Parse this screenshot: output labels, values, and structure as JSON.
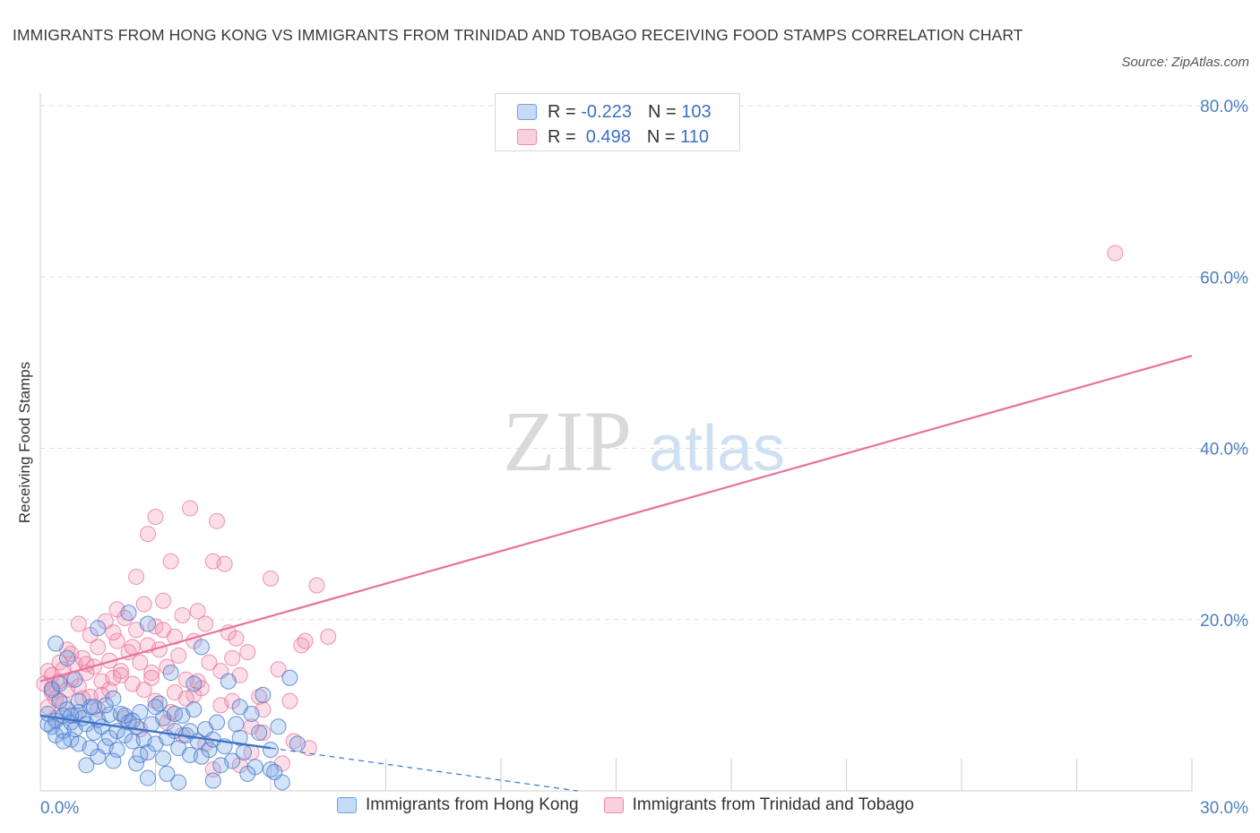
{
  "title": "IMMIGRANTS FROM HONG KONG VS IMMIGRANTS FROM TRINIDAD AND TOBAGO RECEIVING FOOD STAMPS CORRELATION CHART",
  "source": "Source: ZipAtlas.com",
  "watermark": {
    "zip": "ZIP",
    "atlas": "atlas"
  },
  "legend": {
    "rows": [
      {
        "r_label": "R = ",
        "r_value": "-0.223",
        "n_label": "N = ",
        "n_value": "103"
      },
      {
        "r_label": "R = ",
        "r_value": " 0.498",
        "n_label": "N = ",
        "n_value": "110"
      }
    ]
  },
  "colors": {
    "hong_kong": "#6fa3e6",
    "trinidad": "#f08aaa",
    "hk_line": "#3b73c8",
    "tt_line": "#e8729a",
    "tick": "#4a7fc1"
  },
  "chart_data": {
    "type": "scatter",
    "title": "IMMIGRANTS FROM HONG KONG VS IMMIGRANTS FROM TRINIDAD AND TOBAGO RECEIVING FOOD STAMPS CORRELATION CHART",
    "xlabel": "",
    "ylabel": "Receiving Food Stamps",
    "xlim": [
      0,
      30
    ],
    "ylim": [
      0,
      80
    ],
    "x_tick_labels": [
      "0.0%",
      "30.0%"
    ],
    "y_ticks": [
      20,
      40,
      60,
      80
    ],
    "y_tick_labels": [
      "20.0%",
      "40.0%",
      "60.0%",
      "80.0%"
    ],
    "grid": true,
    "legend_position": "top-center",
    "series": [
      {
        "name": "Immigrants from Hong Kong",
        "color": "#6fa3e6",
        "R": -0.223,
        "N": 103,
        "trend": {
          "x": [
            0,
            6.0
          ],
          "y": [
            8.8,
            5.0
          ],
          "dashed_to": [
            14.0,
            0.0
          ]
        },
        "points": [
          [
            0.2,
            9.0
          ],
          [
            0.3,
            7.5
          ],
          [
            0.4,
            8.2
          ],
          [
            0.4,
            6.5
          ],
          [
            0.5,
            10.5
          ],
          [
            0.6,
            8.8
          ],
          [
            0.6,
            7.0
          ],
          [
            0.7,
            9.5
          ],
          [
            0.8,
            6.0
          ],
          [
            0.8,
            8.0
          ],
          [
            0.9,
            7.2
          ],
          [
            1.0,
            9.2
          ],
          [
            1.0,
            5.5
          ],
          [
            1.1,
            8.5
          ],
          [
            1.2,
            7.8
          ],
          [
            1.2,
            3.0
          ],
          [
            1.3,
            9.8
          ],
          [
            1.4,
            6.8
          ],
          [
            1.5,
            8.3
          ],
          [
            1.5,
            4.0
          ],
          [
            1.6,
            7.5
          ],
          [
            1.7,
            5.2
          ],
          [
            1.8,
            8.9
          ],
          [
            1.8,
            6.2
          ],
          [
            1.9,
            10.8
          ],
          [
            2.0,
            7.0
          ],
          [
            2.0,
            4.8
          ],
          [
            2.1,
            9.0
          ],
          [
            2.2,
            6.5
          ],
          [
            2.3,
            8.0
          ],
          [
            2.3,
            20.8
          ],
          [
            2.4,
            5.8
          ],
          [
            2.5,
            7.5
          ],
          [
            2.5,
            3.2
          ],
          [
            2.6,
            9.2
          ],
          [
            2.7,
            6.0
          ],
          [
            2.8,
            4.5
          ],
          [
            2.8,
            1.5
          ],
          [
            2.9,
            7.8
          ],
          [
            3.0,
            5.5
          ],
          [
            3.1,
            10.2
          ],
          [
            3.2,
            8.5
          ],
          [
            3.2,
            3.8
          ],
          [
            3.3,
            6.2
          ],
          [
            3.4,
            13.8
          ],
          [
            3.5,
            7.0
          ],
          [
            3.6,
            5.0
          ],
          [
            3.6,
            1.0
          ],
          [
            3.7,
            8.8
          ],
          [
            3.8,
            6.5
          ],
          [
            3.9,
            4.2
          ],
          [
            4.0,
            9.5
          ],
          [
            4.0,
            12.5
          ],
          [
            4.1,
            5.8
          ],
          [
            4.2,
            16.8
          ],
          [
            4.3,
            7.2
          ],
          [
            4.4,
            4.8
          ],
          [
            4.5,
            1.2
          ],
          [
            4.5,
            6.0
          ],
          [
            4.6,
            8.0
          ],
          [
            4.8,
            5.2
          ],
          [
            4.9,
            12.8
          ],
          [
            5.0,
            3.5
          ],
          [
            5.1,
            7.8
          ],
          [
            5.2,
            6.2
          ],
          [
            5.3,
            4.5
          ],
          [
            5.5,
            9.0
          ],
          [
            5.6,
            2.8
          ],
          [
            5.7,
            6.8
          ],
          [
            5.8,
            11.2
          ],
          [
            6.0,
            4.8
          ],
          [
            6.0,
            2.5
          ],
          [
            6.2,
            7.5
          ],
          [
            6.3,
            1.0
          ],
          [
            6.5,
            13.2
          ],
          [
            6.7,
            5.5
          ],
          [
            0.3,
            11.8
          ],
          [
            0.5,
            12.5
          ],
          [
            0.7,
            15.5
          ],
          [
            0.4,
            17.2
          ],
          [
            1.5,
            19.0
          ],
          [
            0.9,
            13.0
          ],
          [
            2.8,
            19.5
          ],
          [
            1.0,
            10.5
          ],
          [
            1.4,
            9.8
          ],
          [
            2.2,
            8.8
          ],
          [
            0.6,
            5.8
          ],
          [
            1.9,
            3.5
          ],
          [
            2.6,
            4.2
          ],
          [
            3.3,
            2.0
          ],
          [
            3.9,
            7.0
          ],
          [
            4.7,
            3.0
          ],
          [
            5.4,
            2.0
          ],
          [
            0.2,
            7.8
          ],
          [
            0.8,
            8.8
          ],
          [
            1.3,
            5.0
          ],
          [
            1.7,
            10.0
          ],
          [
            2.4,
            8.2
          ],
          [
            3.0,
            9.8
          ],
          [
            3.5,
            9.0
          ],
          [
            4.2,
            4.0
          ],
          [
            5.2,
            9.8
          ],
          [
            6.1,
            2.2
          ]
        ]
      },
      {
        "name": "Immigrants from Trinidad and Tobago",
        "color": "#f08aaa",
        "R": 0.498,
        "N": 110,
        "trend": {
          "x": [
            0,
            30
          ],
          "y": [
            12.8,
            50.8
          ]
        },
        "points": [
          [
            0.1,
            12.5
          ],
          [
            0.2,
            14.0
          ],
          [
            0.3,
            11.5
          ],
          [
            0.3,
            13.5
          ],
          [
            0.4,
            10.8
          ],
          [
            0.5,
            15.0
          ],
          [
            0.5,
            12.8
          ],
          [
            0.6,
            14.2
          ],
          [
            0.7,
            11.8
          ],
          [
            0.8,
            13.0
          ],
          [
            0.8,
            16.0
          ],
          [
            0.9,
            14.8
          ],
          [
            1.0,
            12.2
          ],
          [
            1.0,
            19.5
          ],
          [
            1.1,
            15.5
          ],
          [
            1.2,
            13.8
          ],
          [
            1.3,
            11.0
          ],
          [
            1.3,
            18.2
          ],
          [
            1.4,
            14.5
          ],
          [
            1.5,
            16.8
          ],
          [
            1.6,
            12.8
          ],
          [
            1.7,
            19.8
          ],
          [
            1.8,
            15.2
          ],
          [
            1.9,
            13.2
          ],
          [
            2.0,
            21.2
          ],
          [
            2.0,
            17.5
          ],
          [
            2.1,
            14.0
          ],
          [
            2.2,
            20.2
          ],
          [
            2.3,
            16.2
          ],
          [
            2.4,
            12.5
          ],
          [
            2.5,
            18.8
          ],
          [
            2.5,
            25.0
          ],
          [
            2.6,
            15.0
          ],
          [
            2.7,
            21.8
          ],
          [
            2.8,
            17.0
          ],
          [
            2.8,
            30.0
          ],
          [
            2.9,
            13.8
          ],
          [
            3.0,
            32.0
          ],
          [
            3.0,
            19.2
          ],
          [
            3.1,
            16.5
          ],
          [
            3.2,
            22.2
          ],
          [
            3.3,
            14.5
          ],
          [
            3.4,
            26.8
          ],
          [
            3.5,
            18.0
          ],
          [
            3.5,
            11.5
          ],
          [
            3.6,
            15.8
          ],
          [
            3.7,
            20.5
          ],
          [
            3.8,
            13.0
          ],
          [
            3.9,
            33.0
          ],
          [
            4.0,
            17.5
          ],
          [
            4.1,
            21.0
          ],
          [
            4.2,
            12.0
          ],
          [
            4.3,
            19.5
          ],
          [
            4.4,
            15.0
          ],
          [
            4.5,
            26.8
          ],
          [
            4.6,
            31.5
          ],
          [
            4.7,
            14.0
          ],
          [
            4.8,
            26.5
          ],
          [
            4.9,
            18.5
          ],
          [
            5.0,
            10.5
          ],
          [
            5.1,
            17.8
          ],
          [
            5.2,
            13.5
          ],
          [
            5.4,
            16.2
          ],
          [
            5.5,
            7.5
          ],
          [
            5.7,
            11.0
          ],
          [
            5.8,
            9.5
          ],
          [
            6.0,
            24.8
          ],
          [
            6.2,
            14.2
          ],
          [
            6.5,
            10.5
          ],
          [
            6.8,
            17.0
          ],
          [
            7.0,
            5.0
          ],
          [
            7.2,
            24.0
          ],
          [
            7.5,
            18.0
          ],
          [
            6.9,
            17.5
          ],
          [
            0.2,
            9.8
          ],
          [
            0.4,
            8.5
          ],
          [
            0.6,
            10.2
          ],
          [
            0.9,
            8.8
          ],
          [
            1.1,
            10.8
          ],
          [
            1.5,
            9.5
          ],
          [
            1.8,
            11.8
          ],
          [
            2.2,
            8.5
          ],
          [
            2.6,
            7.2
          ],
          [
            3.0,
            10.5
          ],
          [
            3.3,
            8.0
          ],
          [
            3.7,
            6.5
          ],
          [
            4.0,
            11.2
          ],
          [
            4.3,
            5.5
          ],
          [
            4.7,
            10.0
          ],
          [
            5.2,
            3.0
          ],
          [
            5.5,
            4.5
          ],
          [
            6.3,
            3.2
          ],
          [
            4.5,
            2.5
          ],
          [
            3.8,
            10.8
          ],
          [
            2.9,
            13.2
          ],
          [
            2.4,
            16.8
          ],
          [
            1.9,
            18.5
          ],
          [
            1.2,
            14.8
          ],
          [
            0.7,
            16.5
          ],
          [
            0.3,
            12.0
          ],
          [
            1.6,
            11.2
          ],
          [
            2.1,
            13.5
          ],
          [
            2.7,
            11.8
          ],
          [
            3.4,
            9.2
          ],
          [
            4.1,
            12.8
          ],
          [
            5.8,
            6.8
          ],
          [
            6.6,
            5.8
          ],
          [
            5.0,
            15.5
          ],
          [
            3.2,
            18.8
          ],
          [
            28.0,
            62.8
          ]
        ]
      }
    ]
  },
  "bottom_legend": {
    "hk_label": "Immigrants from Hong Kong",
    "tt_label": "Immigrants from Trinidad and Tobago"
  }
}
